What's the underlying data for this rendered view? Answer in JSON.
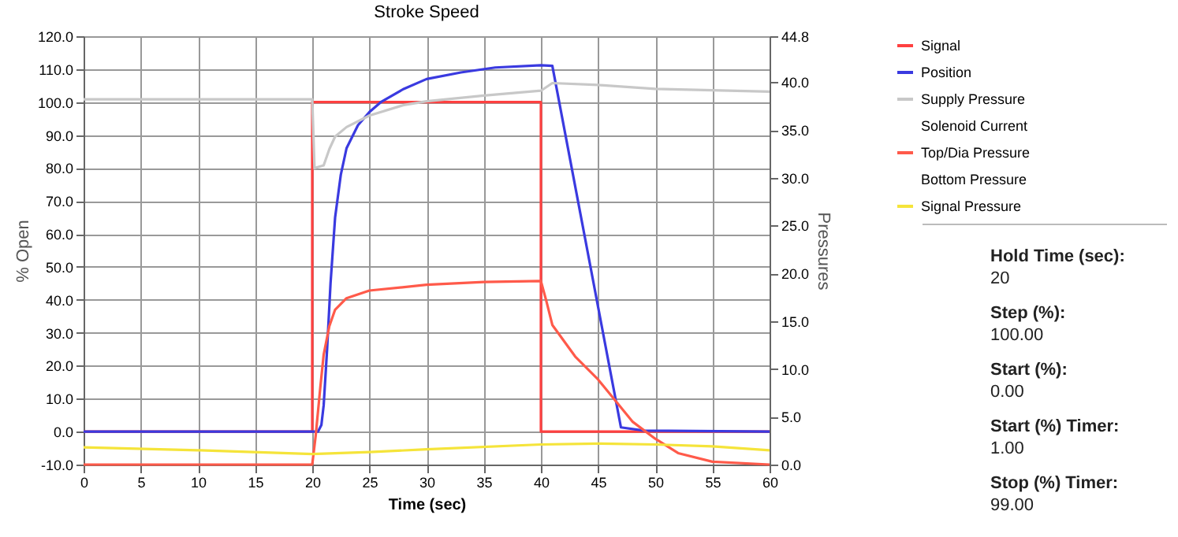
{
  "chart_data": {
    "type": "line",
    "title": "Stroke Speed",
    "xlabel": "Time (sec)",
    "ylabel": "% Open",
    "y2label": "Pressures",
    "xlim": [
      0,
      60
    ],
    "xticks": [
      0,
      5,
      10,
      15,
      20,
      25,
      30,
      35,
      40,
      45,
      50,
      55,
      60
    ],
    "ylim": [
      -10,
      120
    ],
    "yticks": [
      {
        "value": -10,
        "label": "-10.0"
      },
      {
        "value": 0,
        "label": "0.0"
      },
      {
        "value": 10,
        "label": "10.0"
      },
      {
        "value": 20,
        "label": "20.0"
      },
      {
        "value": 30,
        "label": "30.0"
      },
      {
        "value": 40,
        "label": "40.0"
      },
      {
        "value": 50,
        "label": "50.0"
      },
      {
        "value": 60,
        "label": "60.0"
      },
      {
        "value": 70,
        "label": "70.0"
      },
      {
        "value": 80,
        "label": "80.0"
      },
      {
        "value": 90,
        "label": "90.0"
      },
      {
        "value": 100,
        "label": "100.0"
      },
      {
        "value": 110,
        "label": "110.0"
      },
      {
        "value": 120,
        "label": "120.0"
      }
    ],
    "y2lim": [
      0,
      44.8
    ],
    "y2ticks": [
      {
        "value": 0,
        "label": "0.0"
      },
      {
        "value": 5,
        "label": "5.0"
      },
      {
        "value": 10,
        "label": "10.0"
      },
      {
        "value": 15,
        "label": "15.0"
      },
      {
        "value": 20,
        "label": "20.0"
      },
      {
        "value": 25,
        "label": "25.0"
      },
      {
        "value": 30,
        "label": "30.0"
      },
      {
        "value": 35,
        "label": "35.0"
      },
      {
        "value": 40,
        "label": "40.0"
      },
      {
        "value": 44.8,
        "label": "44.8"
      }
    ],
    "grid": true,
    "legend": "top right",
    "marker": "none",
    "series": [
      {
        "name": "Signal",
        "color": "#ff4040",
        "x": [
          0,
          20,
          20,
          40,
          40,
          60
        ],
        "values": [
          0,
          0,
          100,
          100,
          0,
          0
        ]
      },
      {
        "name": "Position",
        "color": "#3a3ae0",
        "x": [
          0,
          20,
          20.5,
          20.8,
          21,
          21.3,
          21.6,
          22,
          22.5,
          23,
          24,
          25,
          26,
          28,
          30,
          33,
          36,
          40,
          41,
          47,
          49,
          60
        ],
        "values": [
          0,
          0,
          0,
          2,
          8,
          25,
          45,
          65,
          78,
          86,
          93,
          97,
          100,
          104,
          107,
          109,
          110.5,
          111.2,
          111,
          1.3,
          0.3,
          0
        ]
      },
      {
        "name": "Supply Pressure",
        "color": "#c8c8c8",
        "axis": "y2",
        "x": [
          0,
          20,
          20.2,
          21,
          21.5,
          22,
          23,
          25,
          28,
          30,
          35,
          40,
          41,
          45,
          50,
          60
        ],
        "values": [
          38.2,
          38.2,
          31,
          31.3,
          33,
          34.3,
          35.3,
          36.5,
          37.6,
          38,
          38.6,
          39.1,
          39.9,
          39.7,
          39.3,
          39
        ]
      },
      {
        "name": "Solenoid Current",
        "axis": "y2"
      },
      {
        "name": "Top/Dia Pressure",
        "color": "#ff5a4a",
        "axis": "y2",
        "x": [
          0,
          20,
          20.3,
          20.7,
          21,
          21.5,
          22,
          23,
          25,
          30,
          35,
          40,
          40.5,
          41,
          43,
          45,
          46.3,
          48,
          50,
          52,
          55,
          60
        ],
        "values": [
          0,
          0,
          3,
          8,
          11.5,
          14.5,
          16.2,
          17.4,
          18.2,
          18.8,
          19.1,
          19.2,
          17,
          14.6,
          11.3,
          8.9,
          7,
          4.5,
          2.7,
          1.2,
          0.3,
          0
        ]
      },
      {
        "name": "Bottom Pressure",
        "axis": "y2"
      },
      {
        "name": "Signal Pressure",
        "color": "#f5e43a",
        "axis": "y2",
        "x": [
          0,
          10,
          20,
          25,
          30,
          40,
          45,
          50,
          55,
          60
        ],
        "values": [
          1.8,
          1.5,
          1.1,
          1.3,
          1.6,
          2.1,
          2.2,
          2.1,
          1.9,
          1.5
        ]
      }
    ],
    "annotations": [
      "Hold Time (sec):",
      "20",
      "Step (%):",
      "100.00",
      "Start (%):",
      "0.00",
      "Start (%) Timer:",
      "1.00",
      "Stop (%) Timer:",
      "99.00"
    ]
  }
}
